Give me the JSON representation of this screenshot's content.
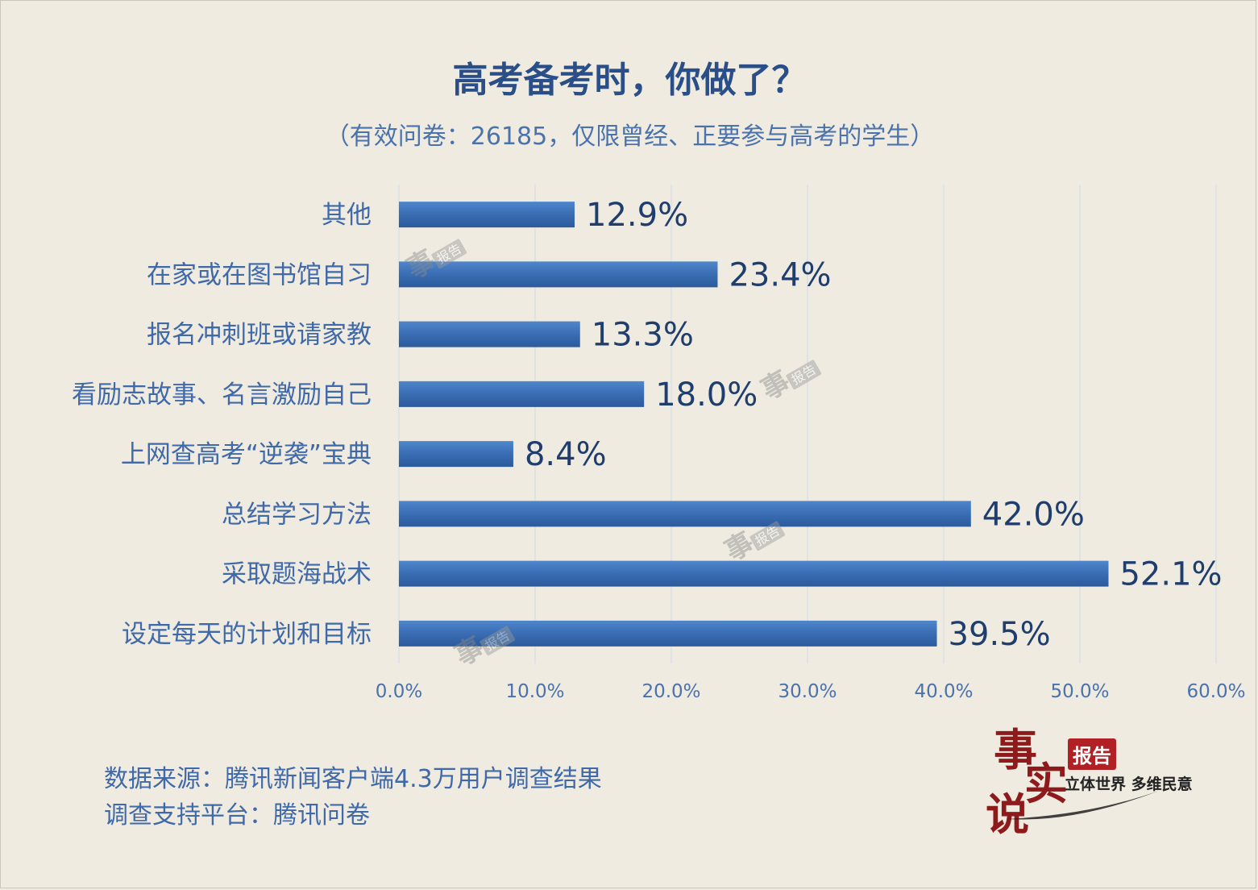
{
  "chart_data": {
    "type": "bar",
    "orientation": "horizontal",
    "title": "高考备考时，你做了？",
    "subtitle": "（有效问卷：26185，仅限曾经、正要参与高考的学生）",
    "categories": [
      "其他",
      "在家或在图书馆自习",
      "报名冲刺班或请家教",
      "看励志故事、名言激励自己",
      "上网查高考“逆袭”宝典",
      "总结学习方法",
      "采取题海战术",
      "设定每天的计划和目标"
    ],
    "values": [
      12.9,
      23.4,
      13.3,
      18.0,
      8.4,
      42.0,
      52.1,
      39.5
    ],
    "value_labels": [
      "12.9%",
      "23.4%",
      "13.3%",
      "18.0%",
      "8.4%",
      "42.0%",
      "52.1%",
      "39.5%"
    ],
    "xlim": [
      0,
      60
    ],
    "x_ticks": [
      "0.0%",
      "10.0%",
      "20.0%",
      "30.0%",
      "40.0%",
      "50.0%",
      "60.0%"
    ],
    "grid": "vertical",
    "bar_color": "#3a6db3"
  },
  "source": {
    "line1": "数据来源：腾讯新闻客户端4.3万用户调查结果",
    "line2": "调查支持平台：腾讯问卷"
  },
  "logo": {
    "char1": "事",
    "char2": "实",
    "char3": "说",
    "badge": "报告",
    "tagline": "立体世界 多维民意"
  }
}
